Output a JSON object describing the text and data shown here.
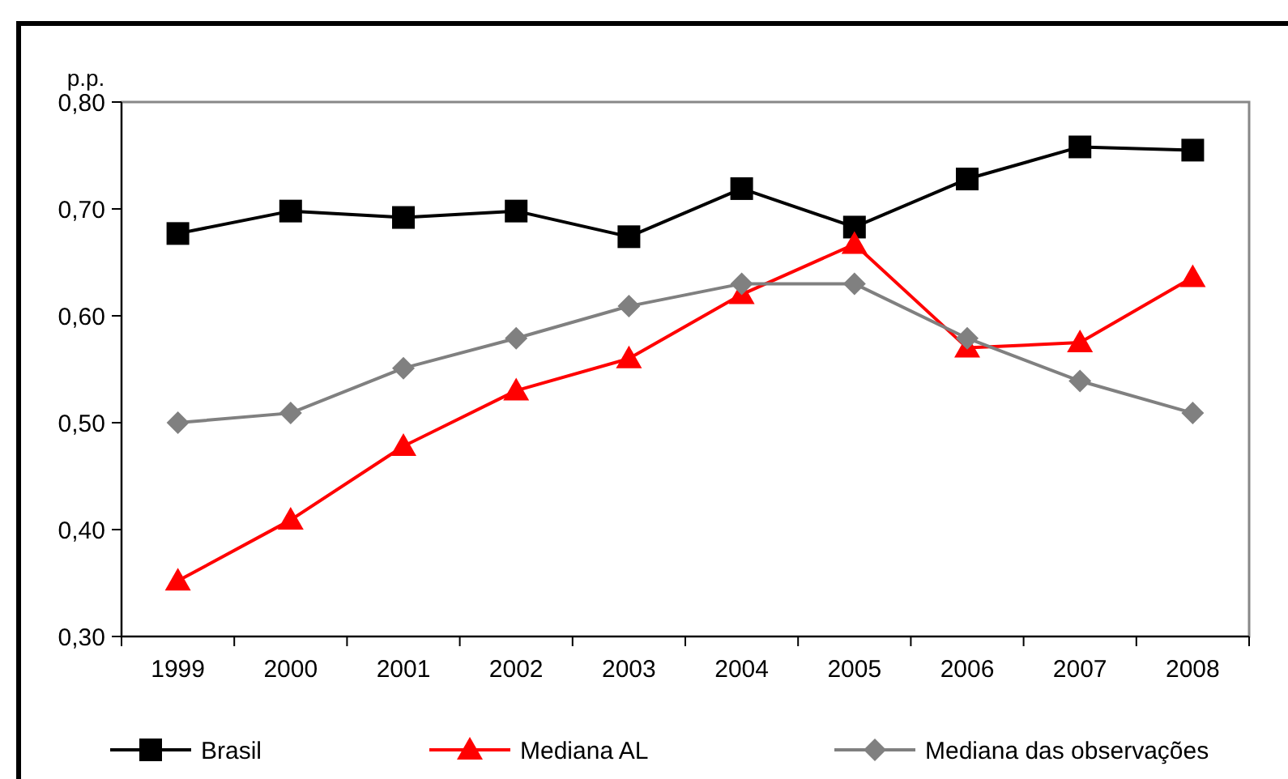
{
  "chart_data": {
    "type": "line",
    "ylabel": "p.p.",
    "categories": [
      "1999",
      "2000",
      "2001",
      "2002",
      "2003",
      "2004",
      "2005",
      "2006",
      "2007",
      "2008"
    ],
    "ylim": [
      0.3,
      0.8
    ],
    "yticks": [
      {
        "value": 0.3,
        "label": "0,30"
      },
      {
        "value": 0.4,
        "label": "0,40"
      },
      {
        "value": 0.5,
        "label": "0,50"
      },
      {
        "value": 0.6,
        "label": "0,60"
      },
      {
        "value": 0.7,
        "label": "0,70"
      },
      {
        "value": 0.8,
        "label": "0,80"
      }
    ],
    "grid": false,
    "legend": "bottom",
    "line_style": "solid",
    "series": [
      {
        "name": "Brasil",
        "color": "#000000",
        "marker": "square",
        "values": [
          0.677,
          0.698,
          0.692,
          0.698,
          0.674,
          0.719,
          0.683,
          0.728,
          0.758,
          0.755
        ]
      },
      {
        "name": "Mediana AL",
        "color": "#ff0000",
        "marker": "triangle",
        "values": [
          0.352,
          0.409,
          0.478,
          0.53,
          0.56,
          0.62,
          0.667,
          0.57,
          0.575,
          0.636
        ]
      },
      {
        "name": "Mediana das observações",
        "color": "#808080",
        "marker": "diamond",
        "values": [
          0.5,
          0.509,
          0.551,
          0.579,
          0.609,
          0.63,
          0.63,
          0.579,
          0.539,
          0.509
        ]
      }
    ]
  }
}
